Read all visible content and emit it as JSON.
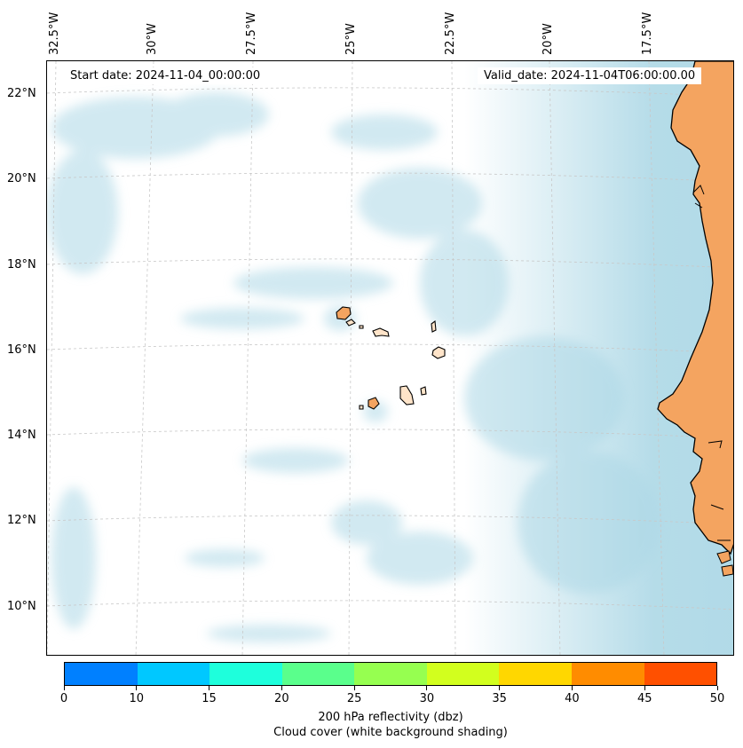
{
  "map": {
    "start_date": "Start date: 2024-11-04_00:00:00",
    "valid_date": "Valid_date: 2024-11-04T06:00:00.00",
    "longitude_labels": [
      "32.5°W",
      "30°W",
      "27.5°W",
      "25°W",
      "22.5°W",
      "20°W",
      "17.5°W"
    ],
    "latitude_labels": [
      "22°N",
      "20°N",
      "18°N",
      "16°N",
      "14°N",
      "12°N",
      "10°N"
    ],
    "colors": {
      "land": "#f4a460",
      "island_light": "#ffe4c9",
      "cloud": "#add8e6",
      "gridline": "#c8c8c8"
    }
  },
  "colorbar": {
    "tick_labels": [
      "0",
      "10",
      "15",
      "20",
      "25",
      "30",
      "35",
      "40",
      "45",
      "50"
    ],
    "colors": [
      "#0080ff",
      "#00c8ff",
      "#1effdc",
      "#5aff8c",
      "#96ff50",
      "#d2ff1e",
      "#ffd700",
      "#ff8c00",
      "#ff5000"
    ],
    "label_line1": "200 hPa reflectivity (dbz)",
    "label_line2": "Cloud cover (white background shading)"
  }
}
